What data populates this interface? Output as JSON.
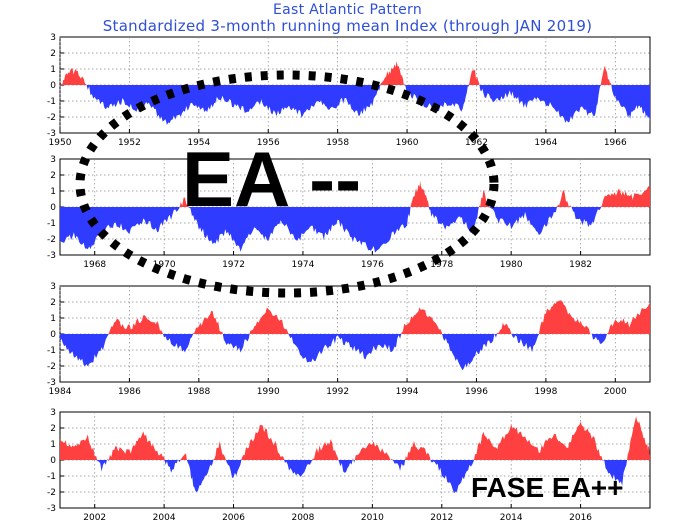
{
  "chart_data": {
    "type": "area",
    "title": "East Atlantic Pattern",
    "subtitle": "Standardized 3-month running mean Index (through JAN 2019)",
    "xlabel": "",
    "ylabel": "",
    "grid": true,
    "colors": {
      "positive": "#ff4040",
      "negative": "#2f3bff",
      "grid": "#888888",
      "text": "#000000",
      "title": "#2f4fd6"
    },
    "annotations": [
      {
        "text": "EA --",
        "kind": "handwritten-overlay"
      },
      {
        "text": "FASE EA++",
        "kind": "overlay-text"
      }
    ],
    "panels": [
      {
        "xlim": [
          1950,
          1967.0
        ],
        "ylim": [
          -3,
          3
        ],
        "yticks": [
          "3",
          "2",
          "1",
          "0",
          "-1",
          "-2",
          "-3"
        ],
        "xticks": [
          "1950",
          "1952",
          "1954",
          "1956",
          "1958",
          "1960",
          "1962",
          "1964",
          "1966"
        ],
        "points": [
          [
            1950.0,
            -0.2
          ],
          [
            1950.3,
            1.0
          ],
          [
            1950.6,
            0.6
          ],
          [
            1951.0,
            -0.9
          ],
          [
            1951.4,
            -1.4
          ],
          [
            1951.8,
            -1.0
          ],
          [
            1952.2,
            -1.6
          ],
          [
            1952.6,
            -1.1
          ],
          [
            1953.0,
            -2.4
          ],
          [
            1953.4,
            -2.0
          ],
          [
            1953.8,
            -1.2
          ],
          [
            1954.2,
            -1.6
          ],
          [
            1954.6,
            -0.8
          ],
          [
            1955.0,
            -1.2
          ],
          [
            1955.4,
            -1.6
          ],
          [
            1955.8,
            -1.0
          ],
          [
            1956.2,
            -1.8
          ],
          [
            1956.6,
            -1.3
          ],
          [
            1957.0,
            -1.9
          ],
          [
            1957.4,
            -1.0
          ],
          [
            1957.8,
            -1.5
          ],
          [
            1958.2,
            -0.9
          ],
          [
            1958.6,
            -1.8
          ],
          [
            1959.0,
            -1.2
          ],
          [
            1959.4,
            0.6
          ],
          [
            1959.7,
            1.4
          ],
          [
            1960.0,
            -0.5
          ],
          [
            1960.4,
            -1.0
          ],
          [
            1960.8,
            -1.6
          ],
          [
            1961.2,
            -1.1
          ],
          [
            1961.6,
            -1.5
          ],
          [
            1961.9,
            1.0
          ],
          [
            1962.2,
            -0.6
          ],
          [
            1962.6,
            -1.0
          ],
          [
            1963.0,
            -0.5
          ],
          [
            1963.4,
            -1.3
          ],
          [
            1963.8,
            -0.8
          ],
          [
            1964.2,
            -1.4
          ],
          [
            1964.6,
            -2.4
          ],
          [
            1965.0,
            -1.5
          ],
          [
            1965.4,
            -1.9
          ],
          [
            1965.7,
            1.1
          ],
          [
            1966.0,
            -0.8
          ],
          [
            1966.4,
            -2.0
          ],
          [
            1966.7,
            -1.2
          ],
          [
            1967.0,
            -2.3
          ]
        ]
      },
      {
        "xlim": [
          1967.0,
          1984.0
        ],
        "ylim": [
          -3,
          3
        ],
        "yticks": [
          "3",
          "2",
          "1",
          "0",
          "-1",
          "-2",
          "-3"
        ],
        "xticks": [
          "1968",
          "1970",
          "1972",
          "1974",
          "1976",
          "1978",
          "1980",
          "1982"
        ],
        "points": [
          [
            1967.0,
            -2.3
          ],
          [
            1967.4,
            -1.8
          ],
          [
            1967.8,
            -2.6
          ],
          [
            1968.2,
            -1.6
          ],
          [
            1968.6,
            -1.0
          ],
          [
            1969.0,
            -1.5
          ],
          [
            1969.4,
            -0.8
          ],
          [
            1969.8,
            -1.4
          ],
          [
            1970.2,
            -0.6
          ],
          [
            1970.6,
            0.5
          ],
          [
            1971.0,
            -1.2
          ],
          [
            1971.4,
            -2.4
          ],
          [
            1971.8,
            -1.5
          ],
          [
            1972.2,
            -2.6
          ],
          [
            1972.6,
            -1.4
          ],
          [
            1973.0,
            -2.0
          ],
          [
            1973.4,
            -0.8
          ],
          [
            1973.8,
            -2.2
          ],
          [
            1974.2,
            -1.2
          ],
          [
            1974.6,
            -1.9
          ],
          [
            1975.0,
            -0.8
          ],
          [
            1975.4,
            -2.0
          ],
          [
            1975.8,
            -2.4
          ],
          [
            1976.2,
            -2.8
          ],
          [
            1976.6,
            -1.6
          ],
          [
            1977.0,
            -1.0
          ],
          [
            1977.2,
            0.8
          ],
          [
            1977.4,
            1.5
          ],
          [
            1977.7,
            -0.4
          ],
          [
            1978.1,
            -1.3
          ],
          [
            1978.5,
            -0.6
          ],
          [
            1978.9,
            -1.6
          ],
          [
            1979.2,
            0.9
          ],
          [
            1979.6,
            -0.8
          ],
          [
            1980.0,
            -1.2
          ],
          [
            1980.4,
            -0.5
          ],
          [
            1980.8,
            -1.6
          ],
          [
            1981.2,
            -0.6
          ],
          [
            1981.5,
            0.9
          ],
          [
            1981.9,
            -0.8
          ],
          [
            1982.3,
            -1.1
          ],
          [
            1982.7,
            0.5
          ],
          [
            1983.1,
            1.0
          ],
          [
            1983.5,
            0.6
          ],
          [
            1984.0,
            1.2
          ]
        ]
      },
      {
        "xlim": [
          1984.0,
          2001.0
        ],
        "ylim": [
          -3,
          3
        ],
        "yticks": [
          "3",
          "2",
          "1",
          "0",
          "-1",
          "-2",
          "-3"
        ],
        "xticks": [
          "1984",
          "1986",
          "1988",
          "1990",
          "1992",
          "1994",
          "1996",
          "1998",
          "2000"
        ],
        "points": [
          [
            1984.0,
            -0.3
          ],
          [
            1984.4,
            -1.4
          ],
          [
            1984.8,
            -2.0
          ],
          [
            1985.2,
            -1.0
          ],
          [
            1985.6,
            0.8
          ],
          [
            1986.0,
            0.4
          ],
          [
            1986.4,
            1.0
          ],
          [
            1986.8,
            0.6
          ],
          [
            1987.2,
            -0.6
          ],
          [
            1987.6,
            -1.0
          ],
          [
            1988.0,
            0.6
          ],
          [
            1988.4,
            1.3
          ],
          [
            1988.8,
            -0.5
          ],
          [
            1989.2,
            -1.0
          ],
          [
            1989.6,
            0.5
          ],
          [
            1990.0,
            1.6
          ],
          [
            1990.4,
            0.8
          ],
          [
            1990.8,
            -0.8
          ],
          [
            1991.2,
            -1.9
          ],
          [
            1991.6,
            -0.9
          ],
          [
            1992.0,
            -0.3
          ],
          [
            1992.4,
            -0.8
          ],
          [
            1992.8,
            -1.4
          ],
          [
            1993.2,
            -0.6
          ],
          [
            1993.6,
            -1.0
          ],
          [
            1994.0,
            0.8
          ],
          [
            1994.4,
            1.6
          ],
          [
            1994.8,
            0.9
          ],
          [
            1995.2,
            -0.8
          ],
          [
            1995.6,
            -2.2
          ],
          [
            1996.0,
            -1.2
          ],
          [
            1996.4,
            -0.5
          ],
          [
            1996.8,
            0.6
          ],
          [
            1997.2,
            -0.4
          ],
          [
            1997.6,
            -1.0
          ],
          [
            1998.0,
            1.4
          ],
          [
            1998.4,
            2.0
          ],
          [
            1998.8,
            1.0
          ],
          [
            1999.2,
            0.3
          ],
          [
            1999.6,
            -0.8
          ],
          [
            2000.0,
            1.0
          ],
          [
            2000.4,
            0.6
          ],
          [
            2001.0,
            2.0
          ]
        ]
      },
      {
        "xlim": [
          2001.0,
          2018.0
        ],
        "ylim": [
          -3,
          3
        ],
        "yticks": [
          "3",
          "2",
          "1",
          "0",
          "-1",
          "-2",
          "-3"
        ],
        "xticks": [
          "2002",
          "2004",
          "2006",
          "2008",
          "2010",
          "2012",
          "2014",
          "2016"
        ],
        "points": [
          [
            2001.0,
            1.2
          ],
          [
            2001.4,
            0.8
          ],
          [
            2001.8,
            1.4
          ],
          [
            2002.2,
            -0.6
          ],
          [
            2002.6,
            0.8
          ],
          [
            2003.0,
            0.5
          ],
          [
            2003.4,
            1.6
          ],
          [
            2003.8,
            0.6
          ],
          [
            2004.2,
            -0.6
          ],
          [
            2004.6,
            0.5
          ],
          [
            2004.9,
            -2.0
          ],
          [
            2005.3,
            -0.5
          ],
          [
            2005.6,
            1.0
          ],
          [
            2006.0,
            -1.2
          ],
          [
            2006.4,
            0.8
          ],
          [
            2006.8,
            2.2
          ],
          [
            2007.2,
            1.0
          ],
          [
            2007.6,
            -0.6
          ],
          [
            2008.0,
            -1.0
          ],
          [
            2008.4,
            0.6
          ],
          [
            2008.8,
            1.2
          ],
          [
            2009.2,
            -0.8
          ],
          [
            2009.6,
            0.4
          ],
          [
            2010.0,
            1.0
          ],
          [
            2010.4,
            0.5
          ],
          [
            2010.8,
            -0.6
          ],
          [
            2011.2,
            1.0
          ],
          [
            2011.6,
            0.4
          ],
          [
            2012.0,
            -0.8
          ],
          [
            2012.4,
            -2.0
          ],
          [
            2012.8,
            -0.5
          ],
          [
            2013.2,
            1.6
          ],
          [
            2013.6,
            0.8
          ],
          [
            2014.0,
            2.2
          ],
          [
            2014.4,
            1.4
          ],
          [
            2014.8,
            0.6
          ],
          [
            2015.2,
            1.6
          ],
          [
            2015.6,
            0.8
          ],
          [
            2016.0,
            2.4
          ],
          [
            2016.4,
            1.2
          ],
          [
            2016.8,
            -0.8
          ],
          [
            2017.2,
            -1.4
          ],
          [
            2017.6,
            2.8
          ],
          [
            2017.9,
            1.0
          ],
          [
            2018.0,
            0.4
          ]
        ]
      }
    ]
  }
}
